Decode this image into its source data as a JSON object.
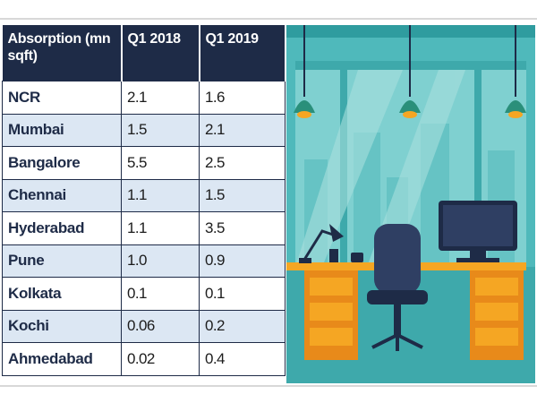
{
  "table": {
    "header": [
      "Absorption (mn sqft)",
      "Q1 2018",
      "Q1 2019"
    ],
    "rows": [
      [
        "NCR",
        "2.1",
        "1.6"
      ],
      [
        "Mumbai",
        "1.5",
        "2.1"
      ],
      [
        "Bangalore",
        "5.5",
        "2.5"
      ],
      [
        "Chennai",
        "1.1",
        "1.5"
      ],
      [
        "Hyderabad",
        "1.1",
        "3.5"
      ],
      [
        "Pune",
        "1.0",
        "0.9"
      ],
      [
        "Kolkata",
        "0.1",
        "0.1"
      ],
      [
        "Kochi",
        "0.06",
        "0.2"
      ],
      [
        "Ahmedabad",
        "0.02",
        "0.4"
      ]
    ]
  }
}
